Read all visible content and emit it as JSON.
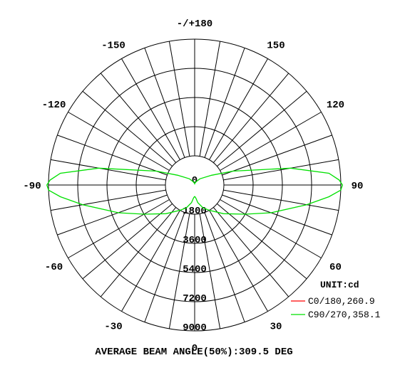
{
  "chart_data": {
    "type": "polar-line",
    "unit_label": "UNIT:cd",
    "radial_max": 9000,
    "radial_ticks": [
      "0",
      "1800",
      "3600",
      "5400",
      "7200",
      "9000"
    ],
    "angle_ticks": [
      {
        "deg": 180,
        "label": "-/+180"
      },
      {
        "deg": 150,
        "label": "150"
      },
      {
        "deg": -150,
        "label": "-150"
      },
      {
        "deg": 120,
        "label": "120"
      },
      {
        "deg": -120,
        "label": "-120"
      },
      {
        "deg": 90,
        "label": "90"
      },
      {
        "deg": -90,
        "label": "-90"
      },
      {
        "deg": 60,
        "label": "60"
      },
      {
        "deg": -60,
        "label": "-60"
      },
      {
        "deg": 30,
        "label": "30"
      },
      {
        "deg": -30,
        "label": "-30"
      },
      {
        "deg": 0,
        "label": "0"
      }
    ],
    "spoke_step_deg": 10,
    "series": [
      {
        "name": "C0/180,260.9",
        "color": "#ff0000",
        "points": [
          [
            0,
            0
          ],
          [
            90,
            0
          ],
          [
            -90,
            0
          ]
        ]
      },
      {
        "name": "C90/270,358.1",
        "color": "#00e000",
        "points": [
          [
            0,
            700
          ],
          [
            5,
            800
          ],
          [
            10,
            1100
          ],
          [
            20,
            1500
          ],
          [
            30,
            1800
          ],
          [
            45,
            2500
          ],
          [
            60,
            3600
          ],
          [
            70,
            5000
          ],
          [
            80,
            7000
          ],
          [
            85,
            8300
          ],
          [
            88,
            9000
          ],
          [
            90,
            9100
          ],
          [
            92,
            8900
          ],
          [
            95,
            8300
          ],
          [
            100,
            6000
          ],
          [
            110,
            2500
          ],
          [
            120,
            1200
          ],
          [
            140,
            500
          ],
          [
            160,
            200
          ],
          [
            175,
            100
          ],
          [
            180,
            80
          ],
          [
            -175,
            100
          ],
          [
            -160,
            200
          ],
          [
            -140,
            500
          ],
          [
            -120,
            1200
          ],
          [
            -110,
            2500
          ],
          [
            -100,
            6000
          ],
          [
            -95,
            8300
          ],
          [
            -92,
            8900
          ],
          [
            -90,
            9100
          ],
          [
            -88,
            9000
          ],
          [
            -85,
            8300
          ],
          [
            -80,
            7000
          ],
          [
            -70,
            5000
          ],
          [
            -60,
            3600
          ],
          [
            -45,
            2500
          ],
          [
            -30,
            1800
          ],
          [
            -20,
            1500
          ],
          [
            -10,
            1100
          ],
          [
            -5,
            800
          ],
          [
            0,
            700
          ]
        ]
      }
    ]
  },
  "footer": "AVERAGE BEAM ANGLE(50%):309.5 DEG"
}
